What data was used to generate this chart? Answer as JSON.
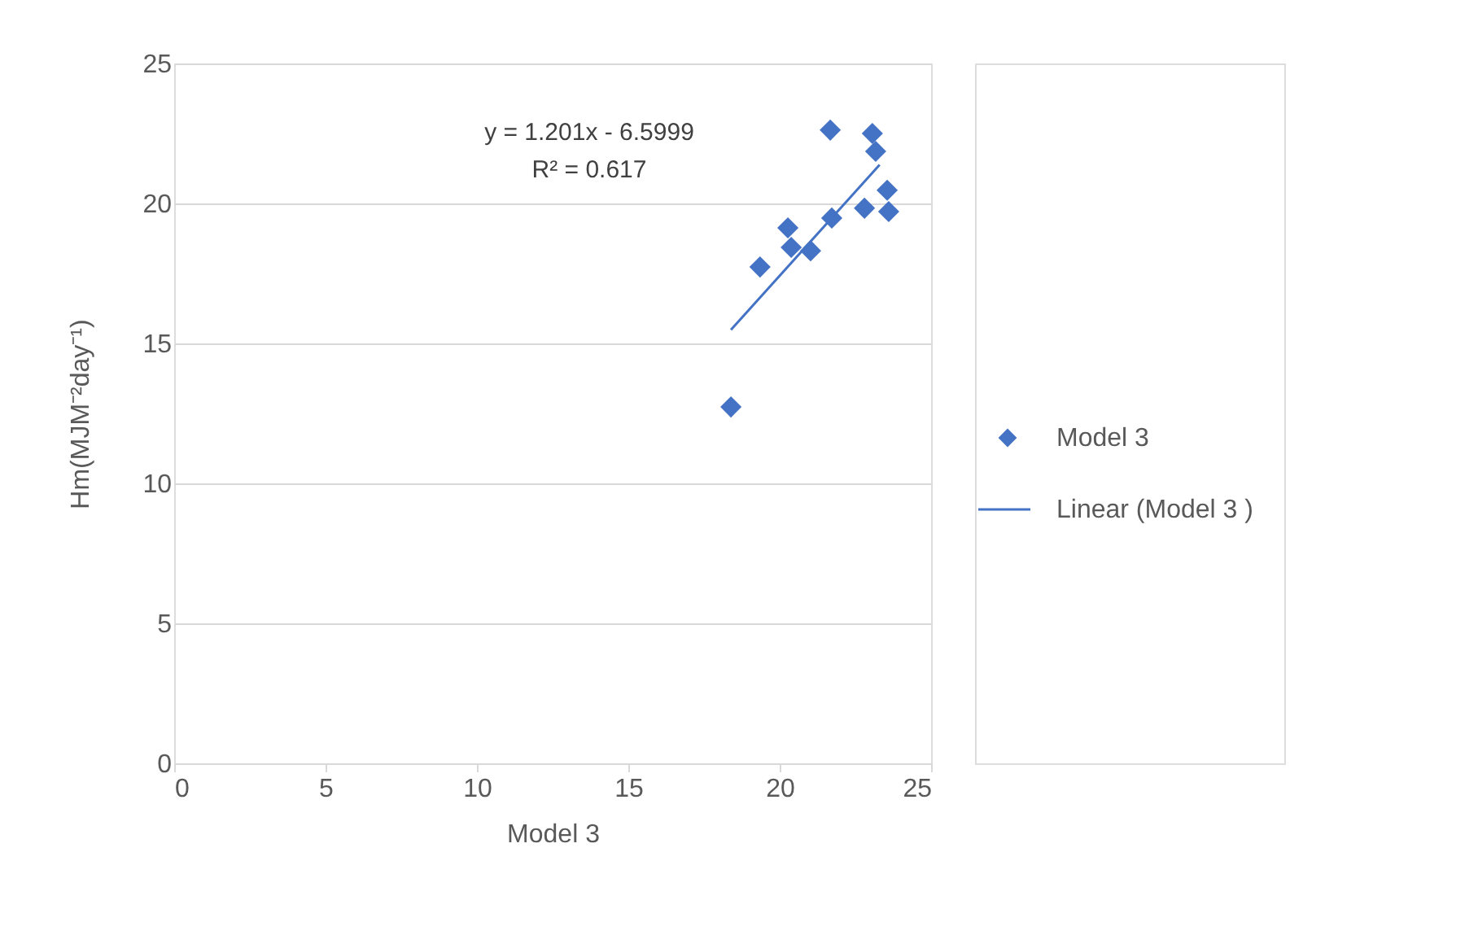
{
  "chart_data": {
    "type": "scatter",
    "xlabel": "Model 3",
    "ylabel": "Hm(MJM⁻²day⁻¹)",
    "xlim": [
      0,
      25
    ],
    "xticks": [
      0,
      5,
      10,
      15,
      20,
      25
    ],
    "ylim": [
      0,
      25
    ],
    "yticks": [
      0,
      5,
      10,
      15,
      20,
      25
    ],
    "grid": "y",
    "legend": "right",
    "series": [
      {
        "name": "Model 3",
        "marker": "diamond",
        "color": "#4472c4",
        "x": [
          18.39,
          19.35,
          20.27,
          20.38,
          21.02,
          21.72,
          21.67,
          22.8,
          23.06,
          23.17,
          23.55,
          23.6
        ],
        "values": [
          12.73,
          17.73,
          19.13,
          18.43,
          18.31,
          19.48,
          22.62,
          19.83,
          22.5,
          21.86,
          20.47,
          19.71
        ]
      },
      {
        "name": "Linear (Model 3 )",
        "type": "line",
        "color": "#4472c4",
        "line_style": "solid",
        "x": [
          18.39,
          23.3
        ],
        "values": [
          15.49,
          21.38
        ]
      }
    ],
    "annotations": [
      "y = 1.201x - 6.5999",
      "R² = 0.617"
    ]
  }
}
